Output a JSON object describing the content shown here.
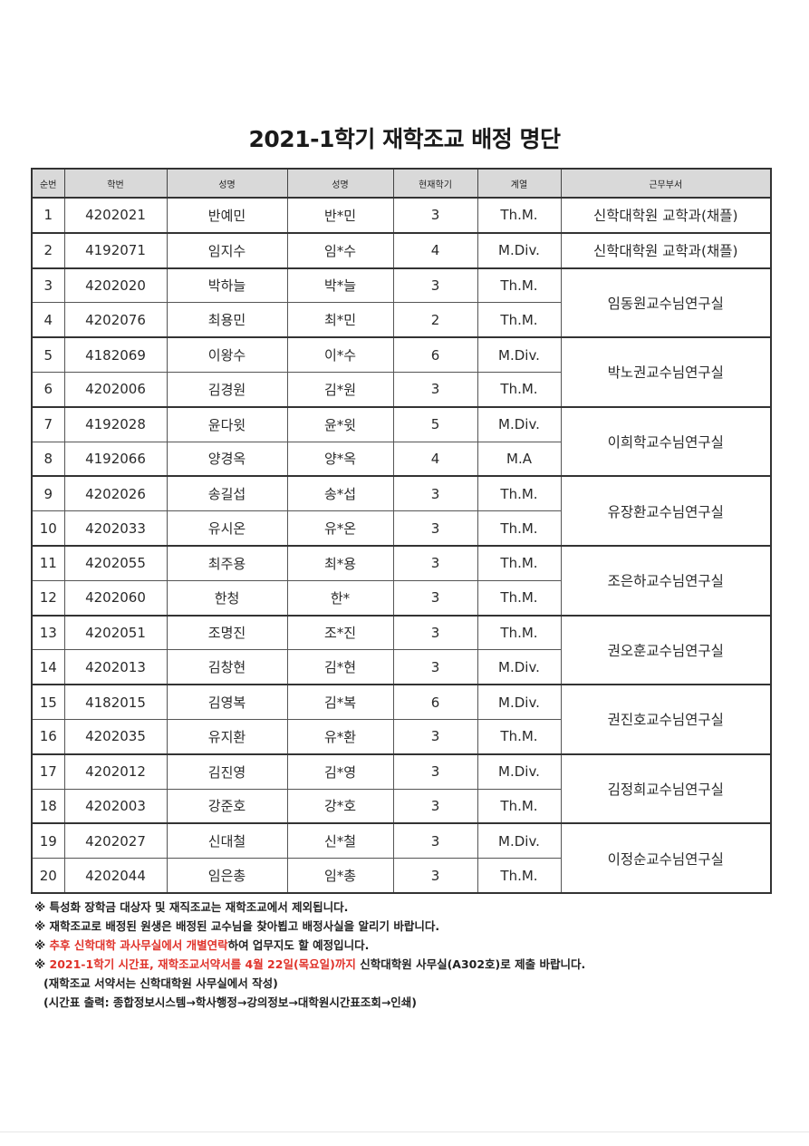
{
  "title": "2021-1학기 재학조교 배정 명단",
  "table": {
    "headers": [
      "순번",
      "학번",
      "성명",
      "성명",
      "현재학기",
      "계열",
      "근무부서"
    ],
    "rows": [
      [
        "1",
        "4202021",
        "반예민",
        "반*민",
        "3",
        "Th.M."
      ],
      [
        "2",
        "4192071",
        "임지수",
        "임*수",
        "4",
        "M.Div."
      ],
      [
        "3",
        "4202020",
        "박하늘",
        "박*늘",
        "3",
        "Th.M."
      ],
      [
        "4",
        "4202076",
        "최용민",
        "최*민",
        "2",
        "Th.M."
      ],
      [
        "5",
        "4182069",
        "이왕수",
        "이*수",
        "6",
        "M.Div."
      ],
      [
        "6",
        "4202006",
        "김경원",
        "김*원",
        "3",
        "Th.M."
      ],
      [
        "7",
        "4192028",
        "윤다윗",
        "윤*윗",
        "5",
        "M.Div."
      ],
      [
        "8",
        "4192066",
        "양경옥",
        "양*옥",
        "4",
        "M.A"
      ],
      [
        "9",
        "4202026",
        "송길섭",
        "송*섭",
        "3",
        "Th.M."
      ],
      [
        "10",
        "4202033",
        "유시온",
        "유*온",
        "3",
        "Th.M."
      ],
      [
        "11",
        "4202055",
        "최주용",
        "최*용",
        "3",
        "Th.M."
      ],
      [
        "12",
        "4202060",
        "한청",
        "한*",
        "3",
        "Th.M."
      ],
      [
        "13",
        "4202051",
        "조명진",
        "조*진",
        "3",
        "Th.M."
      ],
      [
        "14",
        "4202013",
        "김창현",
        "김*현",
        "3",
        "M.Div."
      ],
      [
        "15",
        "4182015",
        "김영복",
        "김*복",
        "6",
        "M.Div."
      ],
      [
        "16",
        "4202035",
        "유지환",
        "유*환",
        "3",
        "Th.M."
      ],
      [
        "17",
        "4202012",
        "김진영",
        "김*영",
        "3",
        "M.Div."
      ],
      [
        "18",
        "4202003",
        "강준호",
        "강*호",
        "3",
        "Th.M."
      ],
      [
        "19",
        "4202027",
        "신대철",
        "신*철",
        "3",
        "M.Div."
      ],
      [
        "20",
        "4202044",
        "임은총",
        "임*총",
        "3",
        "Th.M."
      ]
    ],
    "departments": [
      {
        "label": "신학대학원 교학과(채플)",
        "rows": 1
      },
      {
        "label": "신학대학원 교학과(채플)",
        "rows": 1
      },
      {
        "label": "임동원교수님연구실",
        "rows": 2
      },
      {
        "label": "박노권교수님연구실",
        "rows": 2
      },
      {
        "label": "이희학교수님연구실",
        "rows": 2
      },
      {
        "label": "유장환교수님연구실",
        "rows": 2
      },
      {
        "label": "조은하교수님연구실",
        "rows": 2
      },
      {
        "label": "권오훈교수님연구실",
        "rows": 2
      },
      {
        "label": "권진호교수님연구실",
        "rows": 2
      },
      {
        "label": "김정희교수님연구실",
        "rows": 2
      },
      {
        "label": "이정순교수님연구실",
        "rows": 2
      }
    ]
  },
  "notes": {
    "n1": "※ 특성화 장학금 대상자 및 재직조교는 재학조교에서 제외됩니다.",
    "n2": "※ 재학조교로 배정된 원생은 배정된 교수님을 찾아뵙고 배정사실을 알리기 바랍니다.",
    "n3_mark": "※ ",
    "n3_red": "추후 신학대학 과사무실에서 개별연락",
    "n3_rest": "하여 업무지도 할 예정입니다.",
    "n4_mark": "※ ",
    "n4_red": "2021-1학기 시간표, 재학조교서약서를 4월 22일(목요일)까지",
    "n4_rest": " 신학대학원 사무실(A302호)로 제출 바랍니다.",
    "n5": "(재학조교 서약서는 신학대학원 사무실에서 작성)",
    "n6": "(시간표 출력: 종합정보시스템→학사행정→강의정보→대학원시간표조회→인쇄)"
  },
  "colors": {
    "highlight": "#e0322a",
    "header_bg": "#d9d9d9"
  }
}
